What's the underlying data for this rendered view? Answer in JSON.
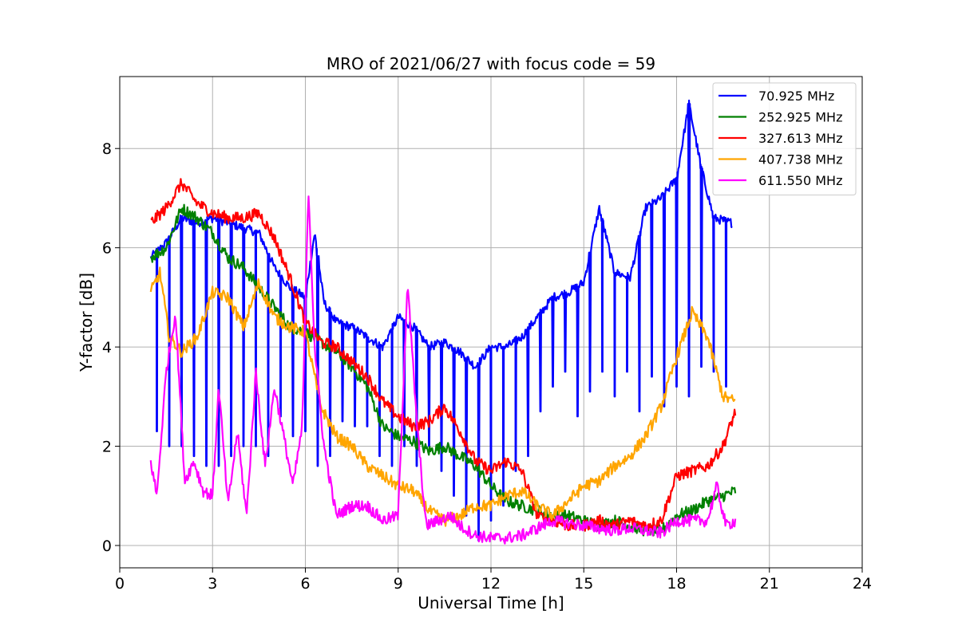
{
  "chart_data": {
    "type": "line",
    "title": "MRO of 2021/06/27 with focus code = 59",
    "xlabel": "Universal Time [h]",
    "ylabel": "Y-factor [dB]",
    "xlim": [
      0,
      24
    ],
    "ylim": [
      -0.45,
      9.45
    ],
    "xticks": [
      0,
      3,
      6,
      9,
      12,
      15,
      18,
      21,
      24
    ],
    "yticks": [
      0,
      2,
      4,
      6,
      8
    ],
    "xtick_labels": [
      "0",
      "3",
      "6",
      "9",
      "12",
      "15",
      "18",
      "21",
      "24"
    ],
    "ytick_labels": [
      "0",
      "2",
      "4",
      "6",
      "8"
    ],
    "grid": true,
    "legend": "top-right",
    "series": [
      {
        "name": "70.925 MHz",
        "color": "#0000ff",
        "points": [
          [
            1.0,
            5.8
          ],
          [
            1.5,
            6.1
          ],
          [
            2.0,
            6.6
          ],
          [
            2.5,
            6.5
          ],
          [
            3.0,
            6.6
          ],
          [
            3.5,
            6.5
          ],
          [
            4.0,
            6.4
          ],
          [
            4.5,
            6.3
          ],
          [
            5.0,
            5.6
          ],
          [
            5.5,
            5.2
          ],
          [
            6.0,
            5.0
          ],
          [
            6.3,
            6.3
          ],
          [
            6.6,
            4.9
          ],
          [
            7.0,
            4.5
          ],
          [
            7.5,
            4.4
          ],
          [
            8.0,
            4.2
          ],
          [
            8.5,
            4.0
          ],
          [
            9.0,
            4.6
          ],
          [
            9.5,
            4.4
          ],
          [
            10.0,
            4.0
          ],
          [
            10.5,
            4.1
          ],
          [
            11.0,
            3.9
          ],
          [
            11.5,
            3.6
          ],
          [
            12.0,
            4.0
          ],
          [
            12.5,
            4.0
          ],
          [
            13.0,
            4.2
          ],
          [
            13.5,
            4.6
          ],
          [
            14.0,
            5.0
          ],
          [
            14.5,
            5.1
          ],
          [
            15.0,
            5.3
          ],
          [
            15.5,
            6.8
          ],
          [
            16.0,
            5.5
          ],
          [
            16.5,
            5.4
          ],
          [
            17.0,
            6.8
          ],
          [
            17.5,
            7.0
          ],
          [
            18.0,
            7.4
          ],
          [
            18.4,
            8.9
          ],
          [
            18.8,
            7.6
          ],
          [
            19.2,
            6.6
          ],
          [
            19.8,
            6.5
          ]
        ],
        "dips": [
          [
            1.2,
            2.3
          ],
          [
            1.6,
            2.0
          ],
          [
            2.0,
            2.0
          ],
          [
            2.4,
            1.8
          ],
          [
            2.8,
            1.6
          ],
          [
            3.2,
            1.6
          ],
          [
            3.6,
            1.8
          ],
          [
            4.0,
            2.0
          ],
          [
            4.4,
            2.0
          ],
          [
            4.8,
            1.8
          ],
          [
            5.2,
            2.6
          ],
          [
            5.6,
            2.2
          ],
          [
            6.0,
            2.3
          ],
          [
            6.4,
            1.6
          ],
          [
            6.8,
            1.8
          ],
          [
            7.2,
            2.5
          ],
          [
            7.6,
            2.4
          ],
          [
            8.0,
            2.4
          ],
          [
            8.4,
            1.8
          ],
          [
            8.8,
            1.6
          ],
          [
            9.2,
            2.0
          ],
          [
            9.6,
            1.6
          ],
          [
            10.0,
            2.0
          ],
          [
            10.4,
            1.5
          ],
          [
            10.8,
            1.0
          ],
          [
            11.2,
            0.6
          ],
          [
            11.6,
            0.1
          ],
          [
            12.0,
            0.5
          ],
          [
            12.4,
            0.8
          ],
          [
            12.8,
            1.5
          ],
          [
            13.2,
            1.8
          ],
          [
            13.6,
            2.7
          ],
          [
            14.0,
            3.2
          ],
          [
            14.4,
            3.5
          ],
          [
            14.8,
            2.6
          ],
          [
            15.2,
            3.1
          ],
          [
            15.6,
            3.5
          ],
          [
            16.0,
            3.0
          ],
          [
            16.4,
            3.5
          ],
          [
            16.8,
            2.7
          ],
          [
            17.2,
            3.4
          ],
          [
            17.6,
            2.8
          ],
          [
            18.0,
            3.2
          ],
          [
            18.4,
            3.0
          ],
          [
            18.8,
            3.6
          ],
          [
            19.2,
            3.5
          ],
          [
            19.6,
            3.2
          ]
        ]
      },
      {
        "name": "252.925 MHz",
        "color": "#008000",
        "points": [
          [
            1.0,
            5.8
          ],
          [
            1.5,
            6.0
          ],
          [
            2.0,
            6.8
          ],
          [
            2.5,
            6.6
          ],
          [
            3.0,
            6.3
          ],
          [
            3.5,
            5.8
          ],
          [
            4.0,
            5.6
          ],
          [
            4.5,
            5.2
          ],
          [
            5.0,
            4.8
          ],
          [
            5.5,
            4.4
          ],
          [
            6.0,
            4.3
          ],
          [
            6.5,
            4.1
          ],
          [
            7.0,
            3.9
          ],
          [
            7.5,
            3.6
          ],
          [
            8.0,
            3.2
          ],
          [
            8.5,
            2.4
          ],
          [
            9.0,
            2.2
          ],
          [
            9.5,
            2.1
          ],
          [
            10.0,
            1.9
          ],
          [
            10.5,
            2.0
          ],
          [
            11.0,
            1.8
          ],
          [
            11.5,
            1.6
          ],
          [
            12.0,
            1.2
          ],
          [
            12.5,
            0.9
          ],
          [
            13.0,
            0.8
          ],
          [
            13.5,
            0.7
          ],
          [
            14.0,
            0.6
          ],
          [
            14.5,
            0.6
          ],
          [
            15.0,
            0.5
          ],
          [
            15.5,
            0.4
          ],
          [
            16.0,
            0.5
          ],
          [
            16.5,
            0.4
          ],
          [
            17.0,
            0.3
          ],
          [
            17.5,
            0.3
          ],
          [
            18.0,
            0.6
          ],
          [
            18.5,
            0.7
          ],
          [
            19.0,
            0.9
          ],
          [
            19.5,
            1.0
          ],
          [
            19.9,
            1.1
          ]
        ]
      },
      {
        "name": "327.613 MHz",
        "color": "#ff0000",
        "points": [
          [
            1.0,
            6.5
          ],
          [
            1.5,
            6.8
          ],
          [
            2.0,
            7.3
          ],
          [
            2.5,
            6.9
          ],
          [
            3.0,
            6.7
          ],
          [
            3.5,
            6.6
          ],
          [
            4.0,
            6.6
          ],
          [
            4.5,
            6.7
          ],
          [
            5.0,
            6.2
          ],
          [
            5.5,
            5.4
          ],
          [
            6.0,
            4.5
          ],
          [
            6.5,
            4.1
          ],
          [
            7.0,
            4.0
          ],
          [
            7.5,
            3.7
          ],
          [
            8.0,
            3.4
          ],
          [
            8.5,
            2.9
          ],
          [
            9.0,
            2.6
          ],
          [
            9.5,
            2.4
          ],
          [
            10.0,
            2.5
          ],
          [
            10.5,
            2.8
          ],
          [
            11.0,
            2.3
          ],
          [
            11.5,
            1.7
          ],
          [
            12.0,
            1.5
          ],
          [
            12.5,
            1.7
          ],
          [
            13.0,
            1.5
          ],
          [
            13.5,
            0.6
          ],
          [
            14.0,
            0.5
          ],
          [
            14.5,
            0.4
          ],
          [
            15.0,
            0.4
          ],
          [
            15.5,
            0.5
          ],
          [
            16.0,
            0.4
          ],
          [
            16.5,
            0.5
          ],
          [
            17.0,
            0.4
          ],
          [
            17.5,
            0.5
          ],
          [
            18.0,
            1.4
          ],
          [
            18.5,
            1.5
          ],
          [
            19.0,
            1.6
          ],
          [
            19.5,
            2.0
          ],
          [
            19.9,
            2.7
          ]
        ]
      },
      {
        "name": "407.738 MHz",
        "color": "#ffa500",
        "points": [
          [
            1.0,
            5.1
          ],
          [
            1.3,
            5.5
          ],
          [
            1.6,
            4.2
          ],
          [
            2.0,
            3.9
          ],
          [
            2.5,
            4.2
          ],
          [
            3.0,
            5.1
          ],
          [
            3.5,
            5.0
          ],
          [
            4.0,
            4.4
          ],
          [
            4.5,
            5.3
          ],
          [
            5.0,
            4.6
          ],
          [
            5.5,
            4.4
          ],
          [
            6.0,
            4.3
          ],
          [
            6.5,
            2.8
          ],
          [
            7.0,
            2.2
          ],
          [
            7.5,
            2.0
          ],
          [
            8.0,
            1.6
          ],
          [
            8.5,
            1.4
          ],
          [
            9.0,
            1.2
          ],
          [
            9.5,
            1.1
          ],
          [
            10.0,
            0.7
          ],
          [
            10.5,
            0.5
          ],
          [
            11.0,
            0.6
          ],
          [
            11.5,
            0.8
          ],
          [
            12.0,
            0.8
          ],
          [
            12.5,
            1.0
          ],
          [
            13.0,
            1.1
          ],
          [
            13.5,
            0.8
          ],
          [
            14.0,
            0.6
          ],
          [
            14.5,
            0.9
          ],
          [
            15.0,
            1.2
          ],
          [
            15.5,
            1.3
          ],
          [
            16.0,
            1.6
          ],
          [
            16.5,
            1.8
          ],
          [
            17.0,
            2.2
          ],
          [
            17.5,
            2.8
          ],
          [
            18.0,
            3.8
          ],
          [
            18.5,
            4.7
          ],
          [
            19.0,
            4.2
          ],
          [
            19.5,
            3.0
          ],
          [
            19.9,
            2.9
          ]
        ]
      },
      {
        "name": "611.550 MHz",
        "color": "#ff00ff",
        "points": [
          [
            1.0,
            1.7
          ],
          [
            1.2,
            1.0
          ],
          [
            1.5,
            3.5
          ],
          [
            1.8,
            4.7
          ],
          [
            2.1,
            1.3
          ],
          [
            2.4,
            1.7
          ],
          [
            2.7,
            1.1
          ],
          [
            3.0,
            1.0
          ],
          [
            3.2,
            3.2
          ],
          [
            3.5,
            0.8
          ],
          [
            3.8,
            2.3
          ],
          [
            4.1,
            0.6
          ],
          [
            4.4,
            3.5
          ],
          [
            4.7,
            1.6
          ],
          [
            5.0,
            3.2
          ],
          [
            5.3,
            2.2
          ],
          [
            5.6,
            1.2
          ],
          [
            5.9,
            2.4
          ],
          [
            6.1,
            7.2
          ],
          [
            6.3,
            4.0
          ],
          [
            6.6,
            2.0
          ],
          [
            7.0,
            0.6
          ],
          [
            7.5,
            0.8
          ],
          [
            8.0,
            0.8
          ],
          [
            8.5,
            0.5
          ],
          [
            9.0,
            0.6
          ],
          [
            9.3,
            5.3
          ],
          [
            9.6,
            2.5
          ],
          [
            9.9,
            0.4
          ],
          [
            10.3,
            0.5
          ],
          [
            10.7,
            0.6
          ],
          [
            11.0,
            0.4
          ],
          [
            11.5,
            0.2
          ],
          [
            12.0,
            0.15
          ],
          [
            12.5,
            0.15
          ],
          [
            13.0,
            0.2
          ],
          [
            13.5,
            0.35
          ],
          [
            14.0,
            0.5
          ],
          [
            14.5,
            0.45
          ],
          [
            15.0,
            0.4
          ],
          [
            15.5,
            0.35
          ],
          [
            16.0,
            0.3
          ],
          [
            16.5,
            0.35
          ],
          [
            17.0,
            0.3
          ],
          [
            17.5,
            0.25
          ],
          [
            18.0,
            0.5
          ],
          [
            18.5,
            0.5
          ],
          [
            19.0,
            0.5
          ],
          [
            19.3,
            1.2
          ],
          [
            19.6,
            0.4
          ],
          [
            19.9,
            0.5
          ]
        ]
      }
    ]
  }
}
